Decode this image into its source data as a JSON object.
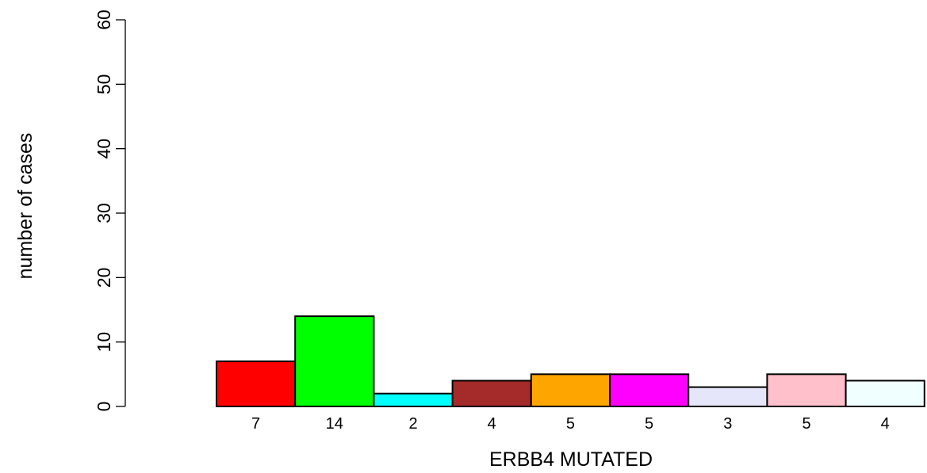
{
  "chart_data": {
    "type": "bar",
    "xlabel": "ERBB4 MUTATED",
    "ylabel": "number of cases",
    "ylim": [
      0,
      60
    ],
    "yticks": [
      0,
      10,
      20,
      30,
      40,
      50,
      60
    ],
    "values": [
      7,
      14,
      2,
      4,
      5,
      5,
      3,
      5,
      4
    ],
    "bar_labels": [
      "7",
      "14",
      "2",
      "4",
      "5",
      "5",
      "3",
      "5",
      "4"
    ],
    "colors": [
      "#ff0000",
      "#00ff00",
      "#00ffff",
      "#a52a2a",
      "#ffa500",
      "#ff00ff",
      "#e6e6fa",
      "#ffc0cb",
      "#f0ffff"
    ],
    "grid": false,
    "legend": "none"
  }
}
